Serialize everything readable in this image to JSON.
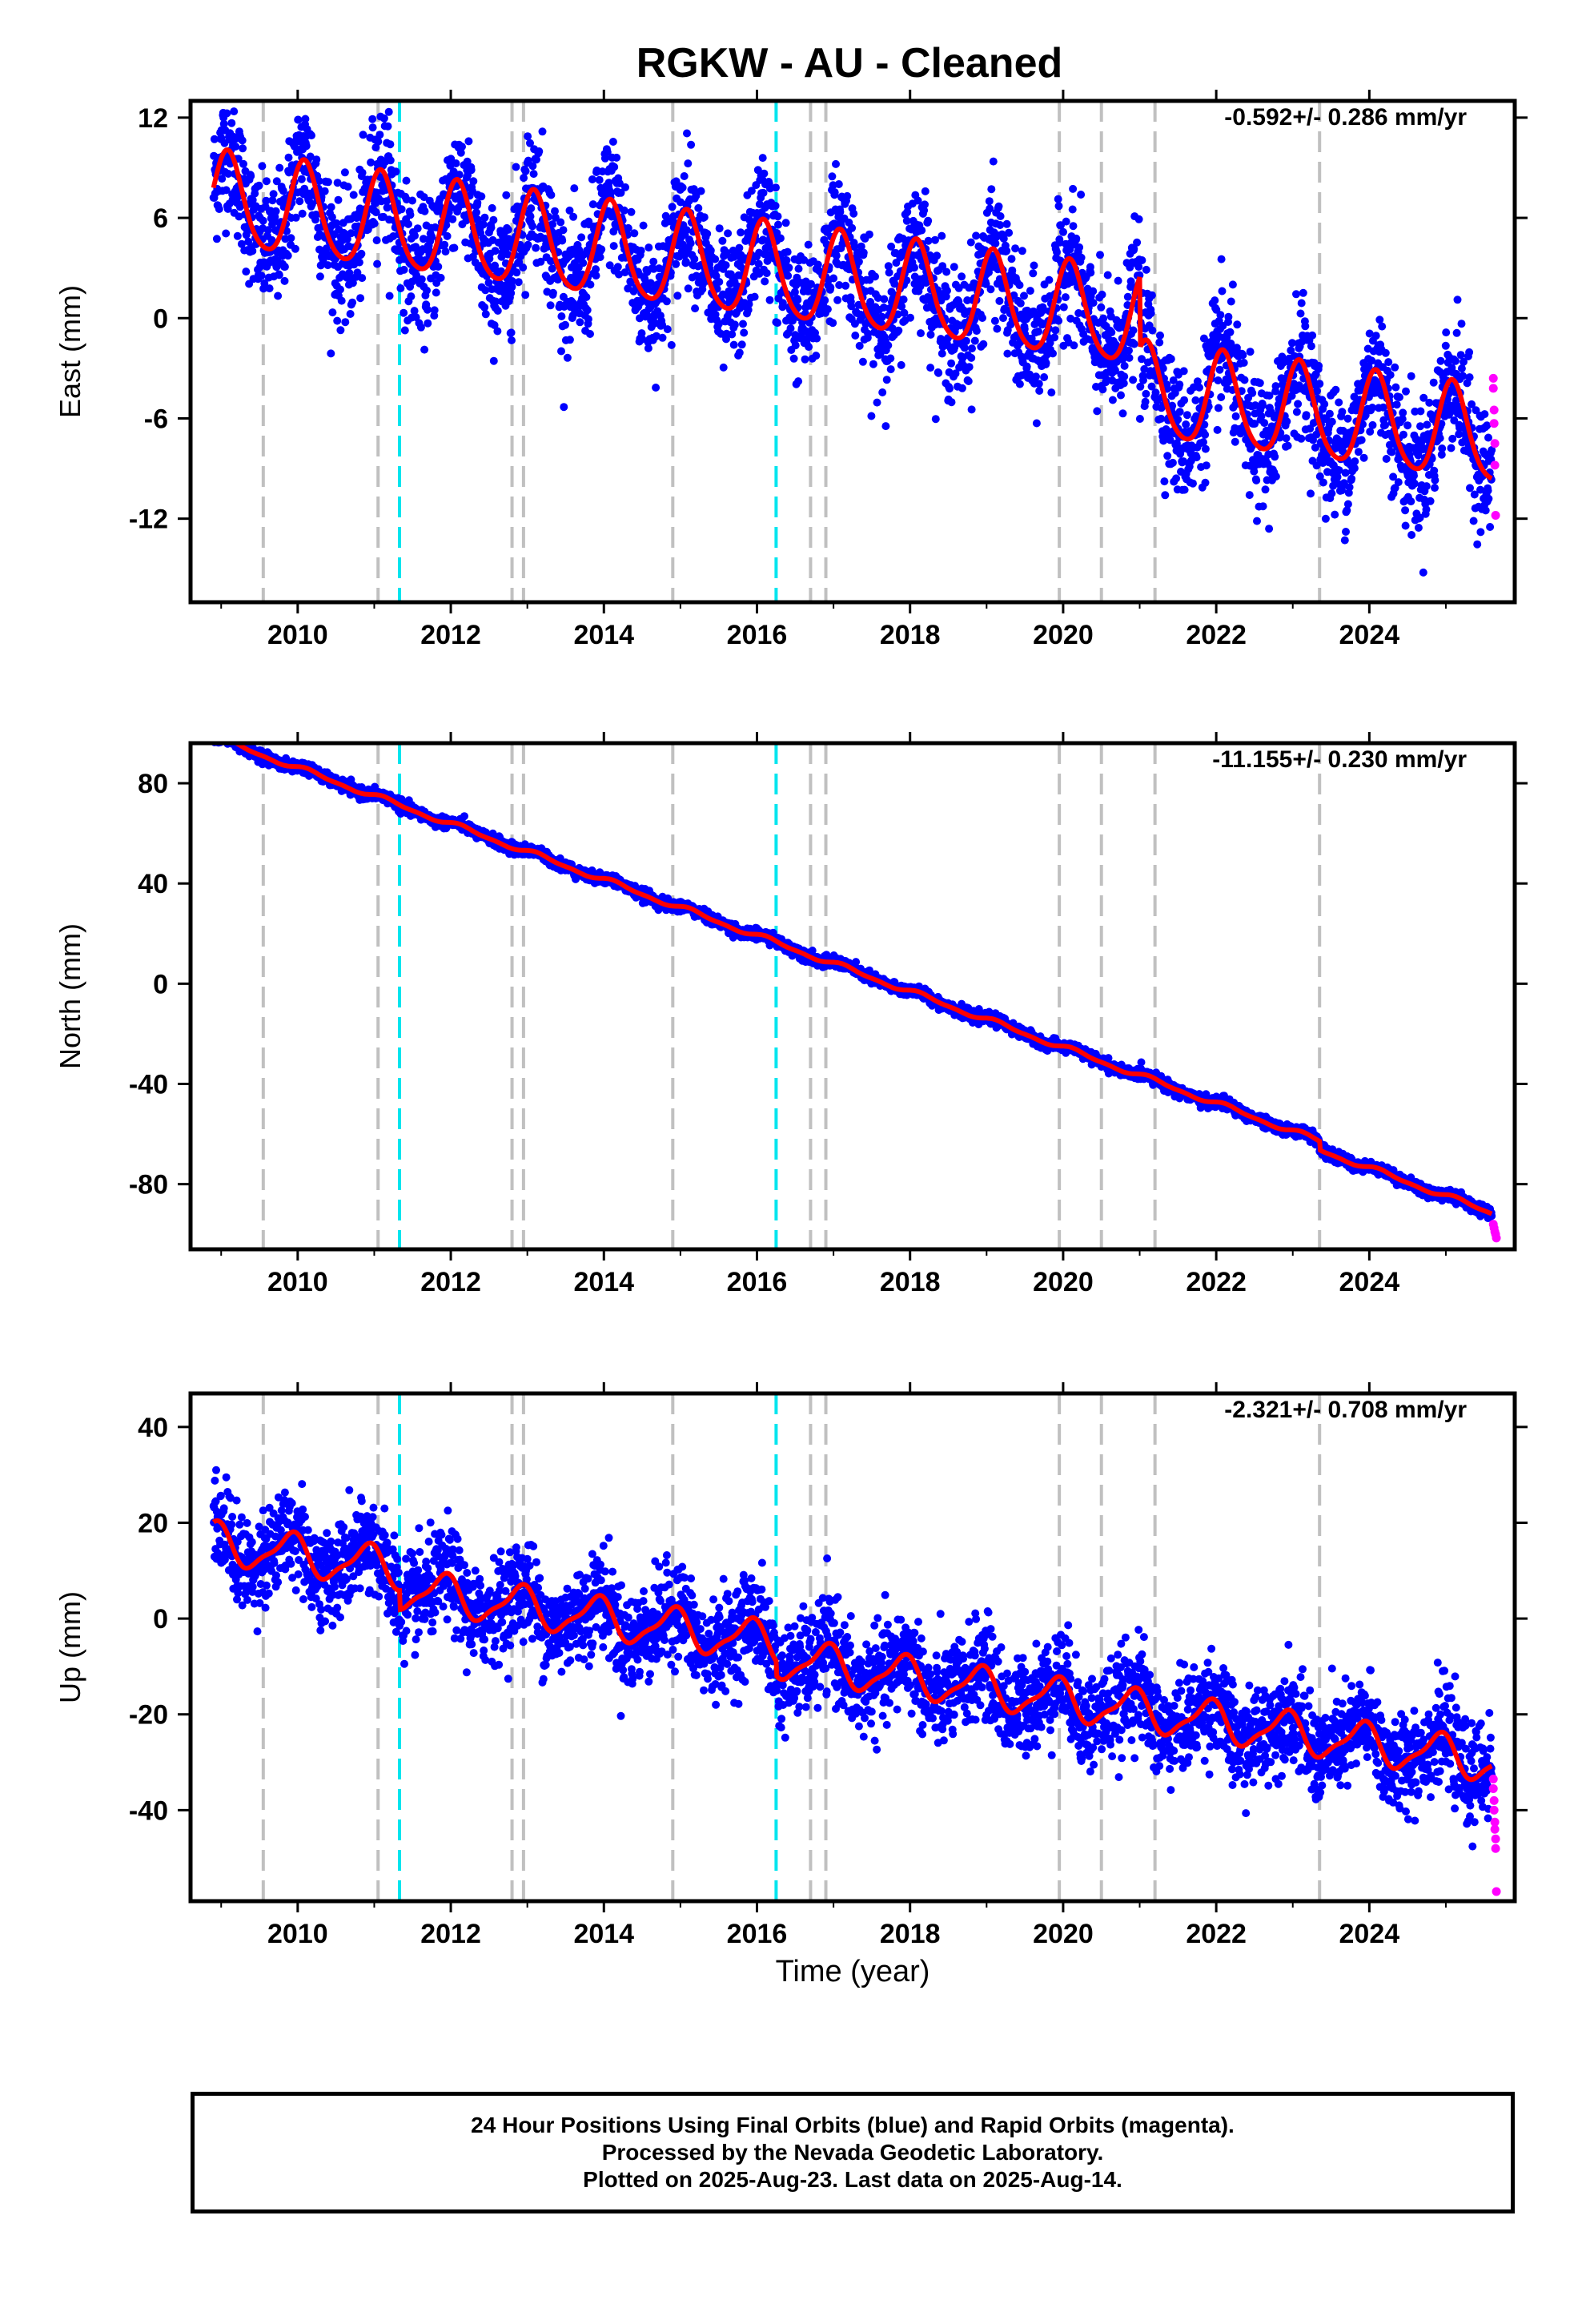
{
  "title": "RGKW  - AU - Cleaned",
  "colors": {
    "final_points": "#0000ff",
    "rapid_points": "#ff00ff",
    "model": "#ff0000",
    "equipment_change": "#c0c0c0",
    "earthquake": "#00e5ee",
    "axes": "#000000"
  },
  "xlabel": "Time (year)",
  "x_ticks": [
    2010,
    2012,
    2014,
    2016,
    2018,
    2020,
    2022,
    2024
  ],
  "event_lines_gray": [
    2009.55,
    2011.05,
    2012.8,
    2012.95,
    2014.9,
    2016.7,
    2016.9,
    2019.95,
    2020.5,
    2021.2,
    2023.35
  ],
  "event_lines_cyan": [
    2011.33,
    2016.25
  ],
  "chart_data": [
    {
      "type": "scatter",
      "component": "east",
      "ylabel": "East (mm)",
      "rate_label": "-0.592+/- 0.286 mm/yr",
      "xlim": [
        2008.6,
        2025.9
      ],
      "ylim": [
        -17,
        13
      ],
      "y_ticks": [
        12,
        6,
        0,
        -6,
        -12
      ],
      "y_tick_labels": [
        "12",
        "6",
        "0",
        "-6",
        "-12"
      ],
      "start_year": 2008.9,
      "end_year": 2025.6,
      "model": {
        "offsets": [
          {
            "year": 2021.0,
            "value": 4.27
          }
        ],
        "trend_base": 2.2,
        "annual_amplitude": 2.8,
        "annual_phase": 1.0,
        "semiannual_amplitude": 0.4
      },
      "scatter_sigma": 1.9,
      "rapid_points": [
        {
          "x": 2025.62,
          "y": -3.6
        },
        {
          "x": 2025.62,
          "y": -4.2
        },
        {
          "x": 2025.63,
          "y": -5.5
        },
        {
          "x": 2025.63,
          "y": -6.3
        },
        {
          "x": 2025.64,
          "y": -7.5
        },
        {
          "x": 2025.64,
          "y": -8.8
        },
        {
          "x": 2025.65,
          "y": -11.8
        }
      ]
    },
    {
      "type": "scatter",
      "component": "north",
      "ylabel": "North (mm)",
      "rate_label": "-11.155+/- 0.230 mm/yr",
      "xlim": [
        2008.6,
        2025.9
      ],
      "ylim": [
        -106,
        96
      ],
      "y_ticks": [
        80,
        40,
        0,
        -40,
        -80
      ],
      "y_tick_labels": [
        "80",
        "40",
        "0",
        "-40",
        "-80"
      ],
      "start_year": 2008.9,
      "end_year": 2025.6,
      "model": {
        "offsets": [
          {
            "year": 2023.35,
            "value": 3.5
          }
        ],
        "trend_base": 8.0,
        "annual_amplitude": 0.9,
        "annual_phase": 0.5,
        "semiannual_amplitude": 0.4
      },
      "scatter_sigma": 1.1,
      "rapid_points": [
        {
          "x": 2025.62,
          "y": -96.0
        },
        {
          "x": 2025.63,
          "y": -97.5
        },
        {
          "x": 2025.64,
          "y": -99.0
        },
        {
          "x": 2025.65,
          "y": -100.0
        },
        {
          "x": 2025.66,
          "y": -101.5
        }
      ]
    },
    {
      "type": "scatter",
      "component": "up",
      "ylabel": "Up (mm)",
      "rate_label": "-2.321+/- 0.708 mm/yr",
      "xlim": [
        2008.6,
        2025.9
      ],
      "ylim": [
        -59,
        47
      ],
      "y_ticks": [
        40,
        20,
        0,
        -20,
        -40
      ],
      "y_tick_labels": [
        "40",
        "20",
        "0",
        "-20",
        "-40"
      ],
      "start_year": 2008.9,
      "end_year": 2025.6,
      "model": {
        "offsets": [
          {
            "year": 2011.33,
            "value": 4.0
          },
          {
            "year": 2016.25,
            "value": 3.0
          }
        ],
        "trend_base": -3.0,
        "annual_amplitude": 4.0,
        "annual_phase": 2.2,
        "semiannual_amplitude": 1.2
      },
      "scatter_sigma": 5.0,
      "rapid_points": [
        {
          "x": 2025.62,
          "y": -33.5
        },
        {
          "x": 2025.62,
          "y": -35.5
        },
        {
          "x": 2025.63,
          "y": -38.0
        },
        {
          "x": 2025.63,
          "y": -40.0
        },
        {
          "x": 2025.64,
          "y": -42.5
        },
        {
          "x": 2025.64,
          "y": -44.0
        },
        {
          "x": 2025.65,
          "y": -46.0
        },
        {
          "x": 2025.65,
          "y": -48.0
        },
        {
          "x": 2025.66,
          "y": -57.0
        }
      ]
    }
  ],
  "footer": {
    "line1": "24 Hour Positions Using Final Orbits (blue) and Rapid Orbits (magenta).",
    "line2": "Processed by the Nevada Geodetic Laboratory.",
    "line3": "Plotted on 2025-Aug-23. Last data on 2025-Aug-14."
  }
}
